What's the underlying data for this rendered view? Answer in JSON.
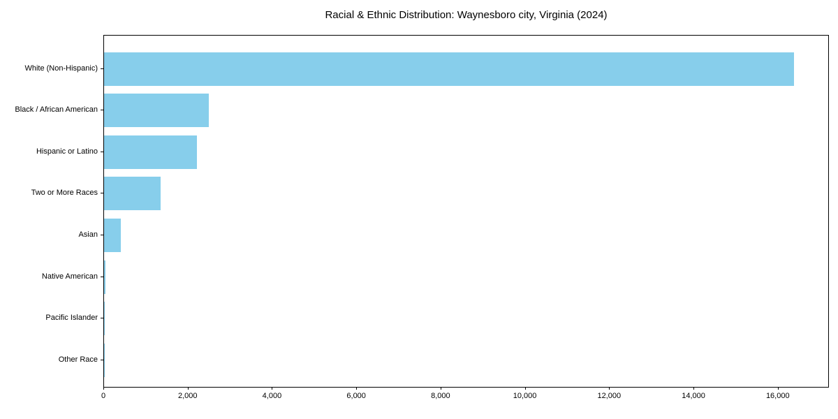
{
  "title": "Racial & Ethnic Distribution: Waynesboro city, Virginia (2024)",
  "chart_data": {
    "type": "bar",
    "orientation": "horizontal",
    "title": "Racial & Ethnic Distribution: Waynesboro city, Virginia (2024)",
    "xlabel": "",
    "ylabel": "",
    "categories": [
      "White (Non-Hispanic)",
      "Black / African American",
      "Hispanic or Latino",
      "Two or More Races",
      "Asian",
      "Native American",
      "Pacific Islander",
      "Other Race"
    ],
    "values": [
      16360,
      2490,
      2210,
      1340,
      400,
      40,
      5,
      10
    ],
    "xlim": [
      0,
      17180
    ],
    "x_ticks": [
      0,
      2000,
      4000,
      6000,
      8000,
      10000,
      12000,
      14000,
      16000
    ],
    "x_tick_labels": [
      "0",
      "2,000",
      "4,000",
      "6,000",
      "8,000",
      "10,000",
      "12,000",
      "14,000",
      "16,000"
    ],
    "bar_color": "#87CEEB",
    "grid": false,
    "legend": null,
    "plot_background": "#ffffff"
  }
}
